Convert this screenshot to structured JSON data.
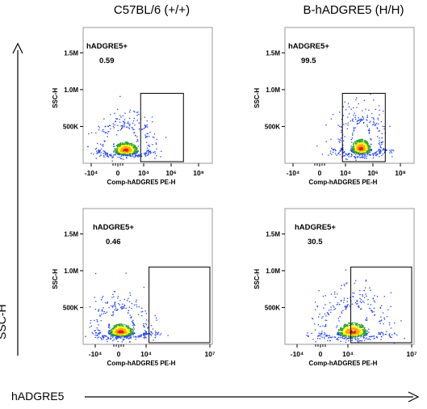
{
  "figure": {
    "columns": [
      "C57BL/6 (+/+)",
      "B-hADGRE5 (H/H)"
    ],
    "y_axis_caption": "SSC-H",
    "x_axis_caption": "hADGRE5"
  },
  "chart_data": [
    {
      "type": "scatter",
      "panel": "top-left",
      "column": "C57BL/6 (+/+)",
      "xlabel": "Comp-hADGRE5 PE-H",
      "ylabel": "SSC-H",
      "x_ticks": [
        "-10⁴",
        "0",
        "10⁴",
        "10⁶",
        "10⁸"
      ],
      "y_ticks": [
        "500K",
        "1.0M",
        "1.5M"
      ],
      "y_range": [
        0,
        1800000
      ],
      "gate": {
        "name": "hADGRE5+",
        "value": "0.59",
        "x_range": [
          2.3,
          5.4
        ],
        "y_range": [
          0,
          950000
        ]
      },
      "population": {
        "center_x": 1.3,
        "center_y": 180000,
        "spread_x": 0.55,
        "spread_y": 70000
      },
      "colors": {
        "hot": "#e41a1c",
        "warm": "#ffa500",
        "mid": "#ffff00",
        "cool": "#2ca02c",
        "cold": "#1f3fff"
      }
    },
    {
      "type": "scatter",
      "panel": "top-right",
      "column": "B-hADGRE5 (H/H)",
      "xlabel": "Comp-hADGRE5 PE-H",
      "ylabel": "SSC-H",
      "x_ticks": [
        "-10⁴",
        "0",
        "10⁴",
        "10⁶",
        "10⁸"
      ],
      "y_ticks": [
        "500K",
        "1.0M",
        "1.5M"
      ],
      "y_range": [
        0,
        1800000
      ],
      "gate": {
        "name": "hADGRE5+",
        "value": "99.5",
        "x_range": [
          2.3,
          5.4
        ],
        "y_range": [
          0,
          950000
        ]
      },
      "population": {
        "center_x": 3.6,
        "center_y": 200000,
        "spread_x": 0.5,
        "spread_y": 80000
      },
      "colors": {
        "hot": "#e41a1c",
        "warm": "#ffa500",
        "mid": "#ffff00",
        "cool": "#2ca02c",
        "cold": "#1f3fff"
      }
    },
    {
      "type": "scatter",
      "panel": "bottom-left",
      "column": "C57BL/6 (+/+)",
      "xlabel": "Comp-hADGRE5 PE-H",
      "ylabel": "SSC-H",
      "x_ticks": [
        "-10⁴",
        "0",
        "10⁴",
        "10⁷"
      ],
      "y_ticks": [
        "500K",
        "1.0M",
        "1.5M"
      ],
      "y_range": [
        0,
        1800000
      ],
      "gate": {
        "name": "hADGRE5+",
        "value": "0.46",
        "x_range": [
          2.8,
          7.0
        ],
        "y_range": [
          0,
          1050000
        ]
      },
      "population": {
        "center_x": 0.9,
        "center_y": 170000,
        "spread_x": 0.6,
        "spread_y": 70000
      },
      "colors": {
        "hot": "#e41a1c",
        "warm": "#ffa500",
        "mid": "#ffff00",
        "cool": "#2ca02c",
        "cold": "#1f3fff"
      }
    },
    {
      "type": "scatter",
      "panel": "bottom-right",
      "column": "B-hADGRE5 (H/H)",
      "xlabel": "Comp-hADGRE5 PE-H",
      "ylabel": "SSC-H",
      "x_ticks": [
        "-10⁴",
        "0",
        "10⁴",
        "10⁷"
      ],
      "y_ticks": [
        "500K",
        "1.0M",
        "1.5M"
      ],
      "y_range": [
        0,
        1800000
      ],
      "gate": {
        "name": "hADGRE5+",
        "value": "30.5",
        "x_range": [
          2.8,
          7.0
        ],
        "y_range": [
          0,
          1050000
        ]
      },
      "population": {
        "center_x": 2.9,
        "center_y": 170000,
        "spread_x": 0.7,
        "spread_y": 80000
      },
      "colors": {
        "hot": "#e41a1c",
        "warm": "#ffa500",
        "mid": "#ffff00",
        "cool": "#2ca02c",
        "cold": "#1f3fff"
      }
    }
  ]
}
